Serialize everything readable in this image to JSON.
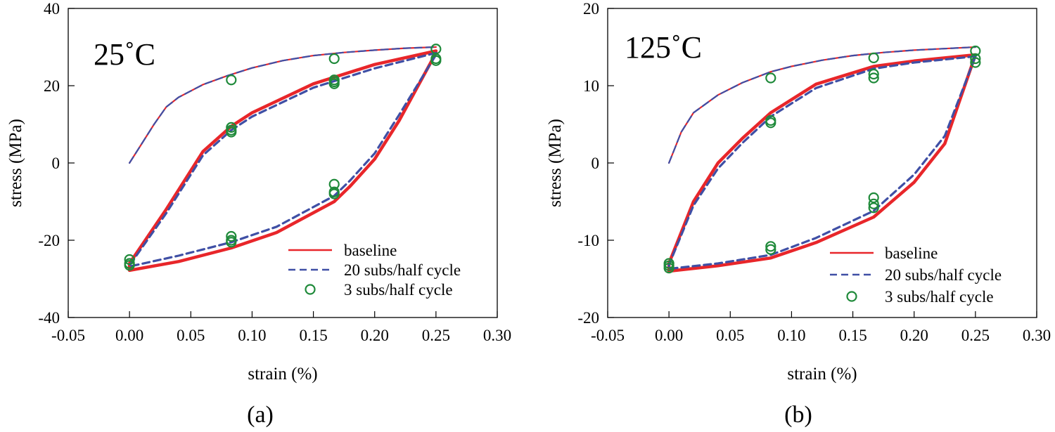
{
  "chart_data": [
    {
      "type": "line",
      "panel_label": "(a)",
      "annotation": "25˚C",
      "xlabel": "strain (%)",
      "ylabel": "stress (MPa)",
      "xlim": [
        -0.05,
        0.3
      ],
      "ylim": [
        -40,
        40
      ],
      "xticks": [
        -0.05,
        0.0,
        0.05,
        0.1,
        0.15,
        0.2,
        0.25,
        0.3
      ],
      "xtick_labels": [
        "-0.05",
        "0.00",
        "0.05",
        "0.10",
        "0.15",
        "0.20",
        "0.25",
        "0.30"
      ],
      "yticks": [
        -40,
        -20,
        0,
        20,
        40
      ],
      "ytick_labels": [
        "-40",
        "-20",
        "0",
        "20",
        "40"
      ],
      "legend_position": "bottom-right",
      "grid": false,
      "series": [
        {
          "name": "baseline",
          "style": "solid",
          "color": "#e8262a",
          "x": [
            0,
            0.01,
            0.02,
            0.03,
            0.04,
            0.06,
            0.08,
            0.1,
            0.125,
            0.15,
            0.175,
            0.2,
            0.225,
            0.25
          ],
          "y": [
            0,
            5,
            10,
            14.5,
            17,
            20.3,
            22.6,
            24.6,
            26.5,
            27.8,
            28.6,
            29.2,
            29.7,
            30.0
          ],
          "cycles": [
            {
              "x": [
                0.25,
                0.2,
                0.15,
                0.1,
                0.083,
                0.06,
                0.03,
                0.0,
                0.0,
                0.04,
                0.083,
                0.12,
                0.167,
                0.18,
                0.2,
                0.22,
                0.25
              ],
              "y": [
                29,
                25.5,
                20.5,
                13,
                9.5,
                3,
                -12,
                -26,
                -27.8,
                -25.5,
                -22,
                -18,
                -10,
                -6,
                1,
                11,
                28.5
              ]
            }
          ]
        },
        {
          "name": "20 subs/half cycle",
          "style": "dashed",
          "color": "#3f4fa5",
          "x": [
            0,
            0.01,
            0.02,
            0.03,
            0.04,
            0.06,
            0.08,
            0.1,
            0.125,
            0.15,
            0.175,
            0.2,
            0.225,
            0.25
          ],
          "y": [
            0,
            5,
            10,
            14.5,
            17,
            20.3,
            22.6,
            24.6,
            26.5,
            27.8,
            28.6,
            29.2,
            29.7,
            30.0
          ],
          "cycles": [
            {
              "x": [
                0.25,
                0.2,
                0.15,
                0.1,
                0.083,
                0.06,
                0.03,
                0.0,
                0.0,
                0.04,
                0.083,
                0.12,
                0.167,
                0.18,
                0.2,
                0.22,
                0.25
              ],
              "y": [
                28.5,
                24.5,
                19.5,
                12,
                8.5,
                2,
                -13,
                -26.5,
                -26.8,
                -24,
                -20.5,
                -16.5,
                -8.5,
                -4.5,
                2.5,
                12.5,
                28
              ]
            }
          ]
        },
        {
          "name": "3 subs/half cycle",
          "style": "markers",
          "color": "#1f8a3a",
          "points": [
            [
              0.0,
              -25
            ],
            [
              0.0,
              -26
            ],
            [
              0.0,
              -26.5
            ],
            [
              0.083,
              21.5
            ],
            [
              0.083,
              9.2
            ],
            [
              0.083,
              8.5
            ],
            [
              0.083,
              8.0
            ],
            [
              0.083,
              -19
            ],
            [
              0.083,
              -20
            ],
            [
              0.083,
              -20.5
            ],
            [
              0.167,
              27
            ],
            [
              0.167,
              21.5
            ],
            [
              0.167,
              21
            ],
            [
              0.167,
              20.5
            ],
            [
              0.167,
              -5.5
            ],
            [
              0.167,
              -7.5
            ],
            [
              0.167,
              -8
            ],
            [
              0.25,
              29.5
            ],
            [
              0.25,
              27
            ],
            [
              0.25,
              26.5
            ]
          ]
        }
      ]
    },
    {
      "type": "line",
      "panel_label": "(b)",
      "annotation": "125˚C",
      "xlabel": "strain (%)",
      "ylabel": "stress (MPa)",
      "xlim": [
        -0.05,
        0.3
      ],
      "ylim": [
        -20,
        20
      ],
      "xticks": [
        -0.05,
        0.0,
        0.05,
        0.1,
        0.15,
        0.2,
        0.25,
        0.3
      ],
      "xtick_labels": [
        "-0.05",
        "0.00",
        "0.05",
        "0.10",
        "0.15",
        "0.20",
        "0.25",
        "0.30"
      ],
      "yticks": [
        -20,
        -10,
        0,
        10,
        20
      ],
      "ytick_labels": [
        "-20",
        "-10",
        "0",
        "10",
        "20"
      ],
      "legend_position": "bottom-right",
      "grid": false,
      "series": [
        {
          "name": "baseline",
          "style": "solid",
          "color": "#e8262a",
          "x": [
            0,
            0.005,
            0.01,
            0.02,
            0.04,
            0.06,
            0.083,
            0.1,
            0.125,
            0.15,
            0.175,
            0.2,
            0.225,
            0.25
          ],
          "y": [
            0,
            2,
            4,
            6.5,
            8.8,
            10.4,
            11.8,
            12.5,
            13.3,
            13.9,
            14.3,
            14.6,
            14.8,
            15.0
          ],
          "cycles": [
            {
              "x": [
                0.25,
                0.2,
                0.167,
                0.12,
                0.083,
                0.06,
                0.04,
                0.02,
                0.0,
                0.0,
                0.04,
                0.083,
                0.12,
                0.167,
                0.2,
                0.225,
                0.25
              ],
              "y": [
                14,
                13.2,
                12.5,
                10.2,
                6.5,
                3.2,
                0,
                -5,
                -13,
                -14,
                -13.3,
                -12.3,
                -10.3,
                -7,
                -2.5,
                2.5,
                14
              ]
            }
          ]
        },
        {
          "name": "20 subs/half cycle",
          "style": "dashed",
          "color": "#3f4fa5",
          "x": [
            0,
            0.005,
            0.01,
            0.02,
            0.04,
            0.06,
            0.083,
            0.1,
            0.125,
            0.15,
            0.175,
            0.2,
            0.225,
            0.25
          ],
          "y": [
            0,
            2,
            4,
            6.5,
            8.8,
            10.4,
            11.8,
            12.5,
            13.3,
            13.9,
            14.3,
            14.6,
            14.8,
            15.0
          ],
          "cycles": [
            {
              "x": [
                0.25,
                0.2,
                0.167,
                0.12,
                0.083,
                0.06,
                0.04,
                0.02,
                0.0,
                0.0,
                0.04,
                0.083,
                0.12,
                0.167,
                0.2,
                0.225,
                0.25
              ],
              "y": [
                13.8,
                13.0,
                12.2,
                9.7,
                6.0,
                2.6,
                -0.7,
                -5.5,
                -13.2,
                -13.7,
                -13.0,
                -11.9,
                -9.7,
                -6.2,
                -1.5,
                3.5,
                13.8
              ]
            }
          ]
        },
        {
          "name": "3 subs/half cycle",
          "style": "markers",
          "color": "#1f8a3a",
          "points": [
            [
              0.0,
              -13
            ],
            [
              0.0,
              -13.3
            ],
            [
              0.0,
              -13.6
            ],
            [
              0.083,
              11
            ],
            [
              0.083,
              5.5
            ],
            [
              0.083,
              5.2
            ],
            [
              0.083,
              -10.8
            ],
            [
              0.083,
              -11.2
            ],
            [
              0.167,
              13.6
            ],
            [
              0.167,
              11.5
            ],
            [
              0.167,
              11.0
            ],
            [
              0.167,
              -4.5
            ],
            [
              0.167,
              -5.3
            ],
            [
              0.167,
              -5.8
            ],
            [
              0.25,
              14.5
            ],
            [
              0.25,
              13.5
            ],
            [
              0.25,
              13.0
            ]
          ]
        }
      ]
    }
  ]
}
